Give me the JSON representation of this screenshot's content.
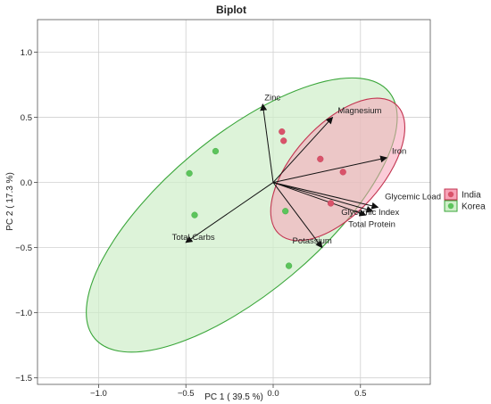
{
  "chart_data": {
    "type": "scatter",
    "title": "Biplot",
    "xlabel": "PC 1 ( 39.5 %)",
    "ylabel": "PC 2 ( 17.3 %)",
    "xlim": [
      -1.35,
      0.9
    ],
    "ylim": [
      -1.55,
      1.25
    ],
    "xticks": [
      -1.0,
      -0.5,
      0.0,
      0.5
    ],
    "xtick_labels": [
      "−1.0",
      "−0.5",
      "0.0",
      "0.5"
    ],
    "yticks": [
      1.0,
      0.5,
      0.0,
      -0.5,
      -1.0,
      -1.5
    ],
    "ytick_labels": [
      "1.0",
      "0.5",
      "0.0",
      "−0.5",
      "−1.0",
      "−1.5"
    ],
    "grid": true,
    "legend_position": "right",
    "series": [
      {
        "name": "India",
        "color": "#d9536a",
        "fill": "#f7a3b8",
        "edge": "#c2334f",
        "points": [
          [
            0.05,
            0.39
          ],
          [
            0.06,
            0.32
          ],
          [
            0.27,
            0.18
          ],
          [
            0.4,
            0.08
          ],
          [
            0.33,
            -0.16
          ]
        ],
        "ellipse": {
          "cx": 0.37,
          "cy": 0.1,
          "rx": 0.5,
          "ry": 0.34,
          "angle_deg": -48
        }
      },
      {
        "name": "Korea",
        "color": "#5cc45c",
        "fill": "#cfeec9",
        "edge": "#3aa63a",
        "points": [
          [
            -0.33,
            0.24
          ],
          [
            -0.48,
            0.07
          ],
          [
            -0.45,
            -0.25
          ],
          [
            0.07,
            -0.22
          ],
          [
            0.09,
            -0.64
          ]
        ],
        "ellipse": {
          "cx": -0.18,
          "cy": -0.25,
          "rx": 1.1,
          "ry": 0.6,
          "angle_deg": -40
        }
      }
    ],
    "vectors": [
      {
        "label": "Zinc",
        "x": -0.06,
        "y": 0.6,
        "label_x": -0.05,
        "label_y": 0.63
      },
      {
        "label": "Magnesium",
        "x": 0.34,
        "y": 0.5,
        "label_x": 0.37,
        "label_y": 0.53
      },
      {
        "label": "Iron",
        "x": 0.65,
        "y": 0.19,
        "label_x": 0.68,
        "label_y": 0.22
      },
      {
        "label": "Glycemic Load",
        "x": 0.6,
        "y": -0.19,
        "label_x": 0.64,
        "label_y": -0.13
      },
      {
        "label": "Glycemic Index",
        "x": 0.57,
        "y": -0.22,
        "label_x": 0.39,
        "label_y": -0.25
      },
      {
        "label": "Total Protein",
        "x": 0.53,
        "y": -0.25,
        "label_x": 0.43,
        "label_y": -0.34
      },
      {
        "label": "Potassium",
        "x": 0.28,
        "y": -0.5,
        "label_x": 0.11,
        "label_y": -0.47
      },
      {
        "label": "Total Carbs",
        "x": -0.5,
        "y": -0.46,
        "label_x": -0.58,
        "label_y": -0.44
      }
    ]
  }
}
